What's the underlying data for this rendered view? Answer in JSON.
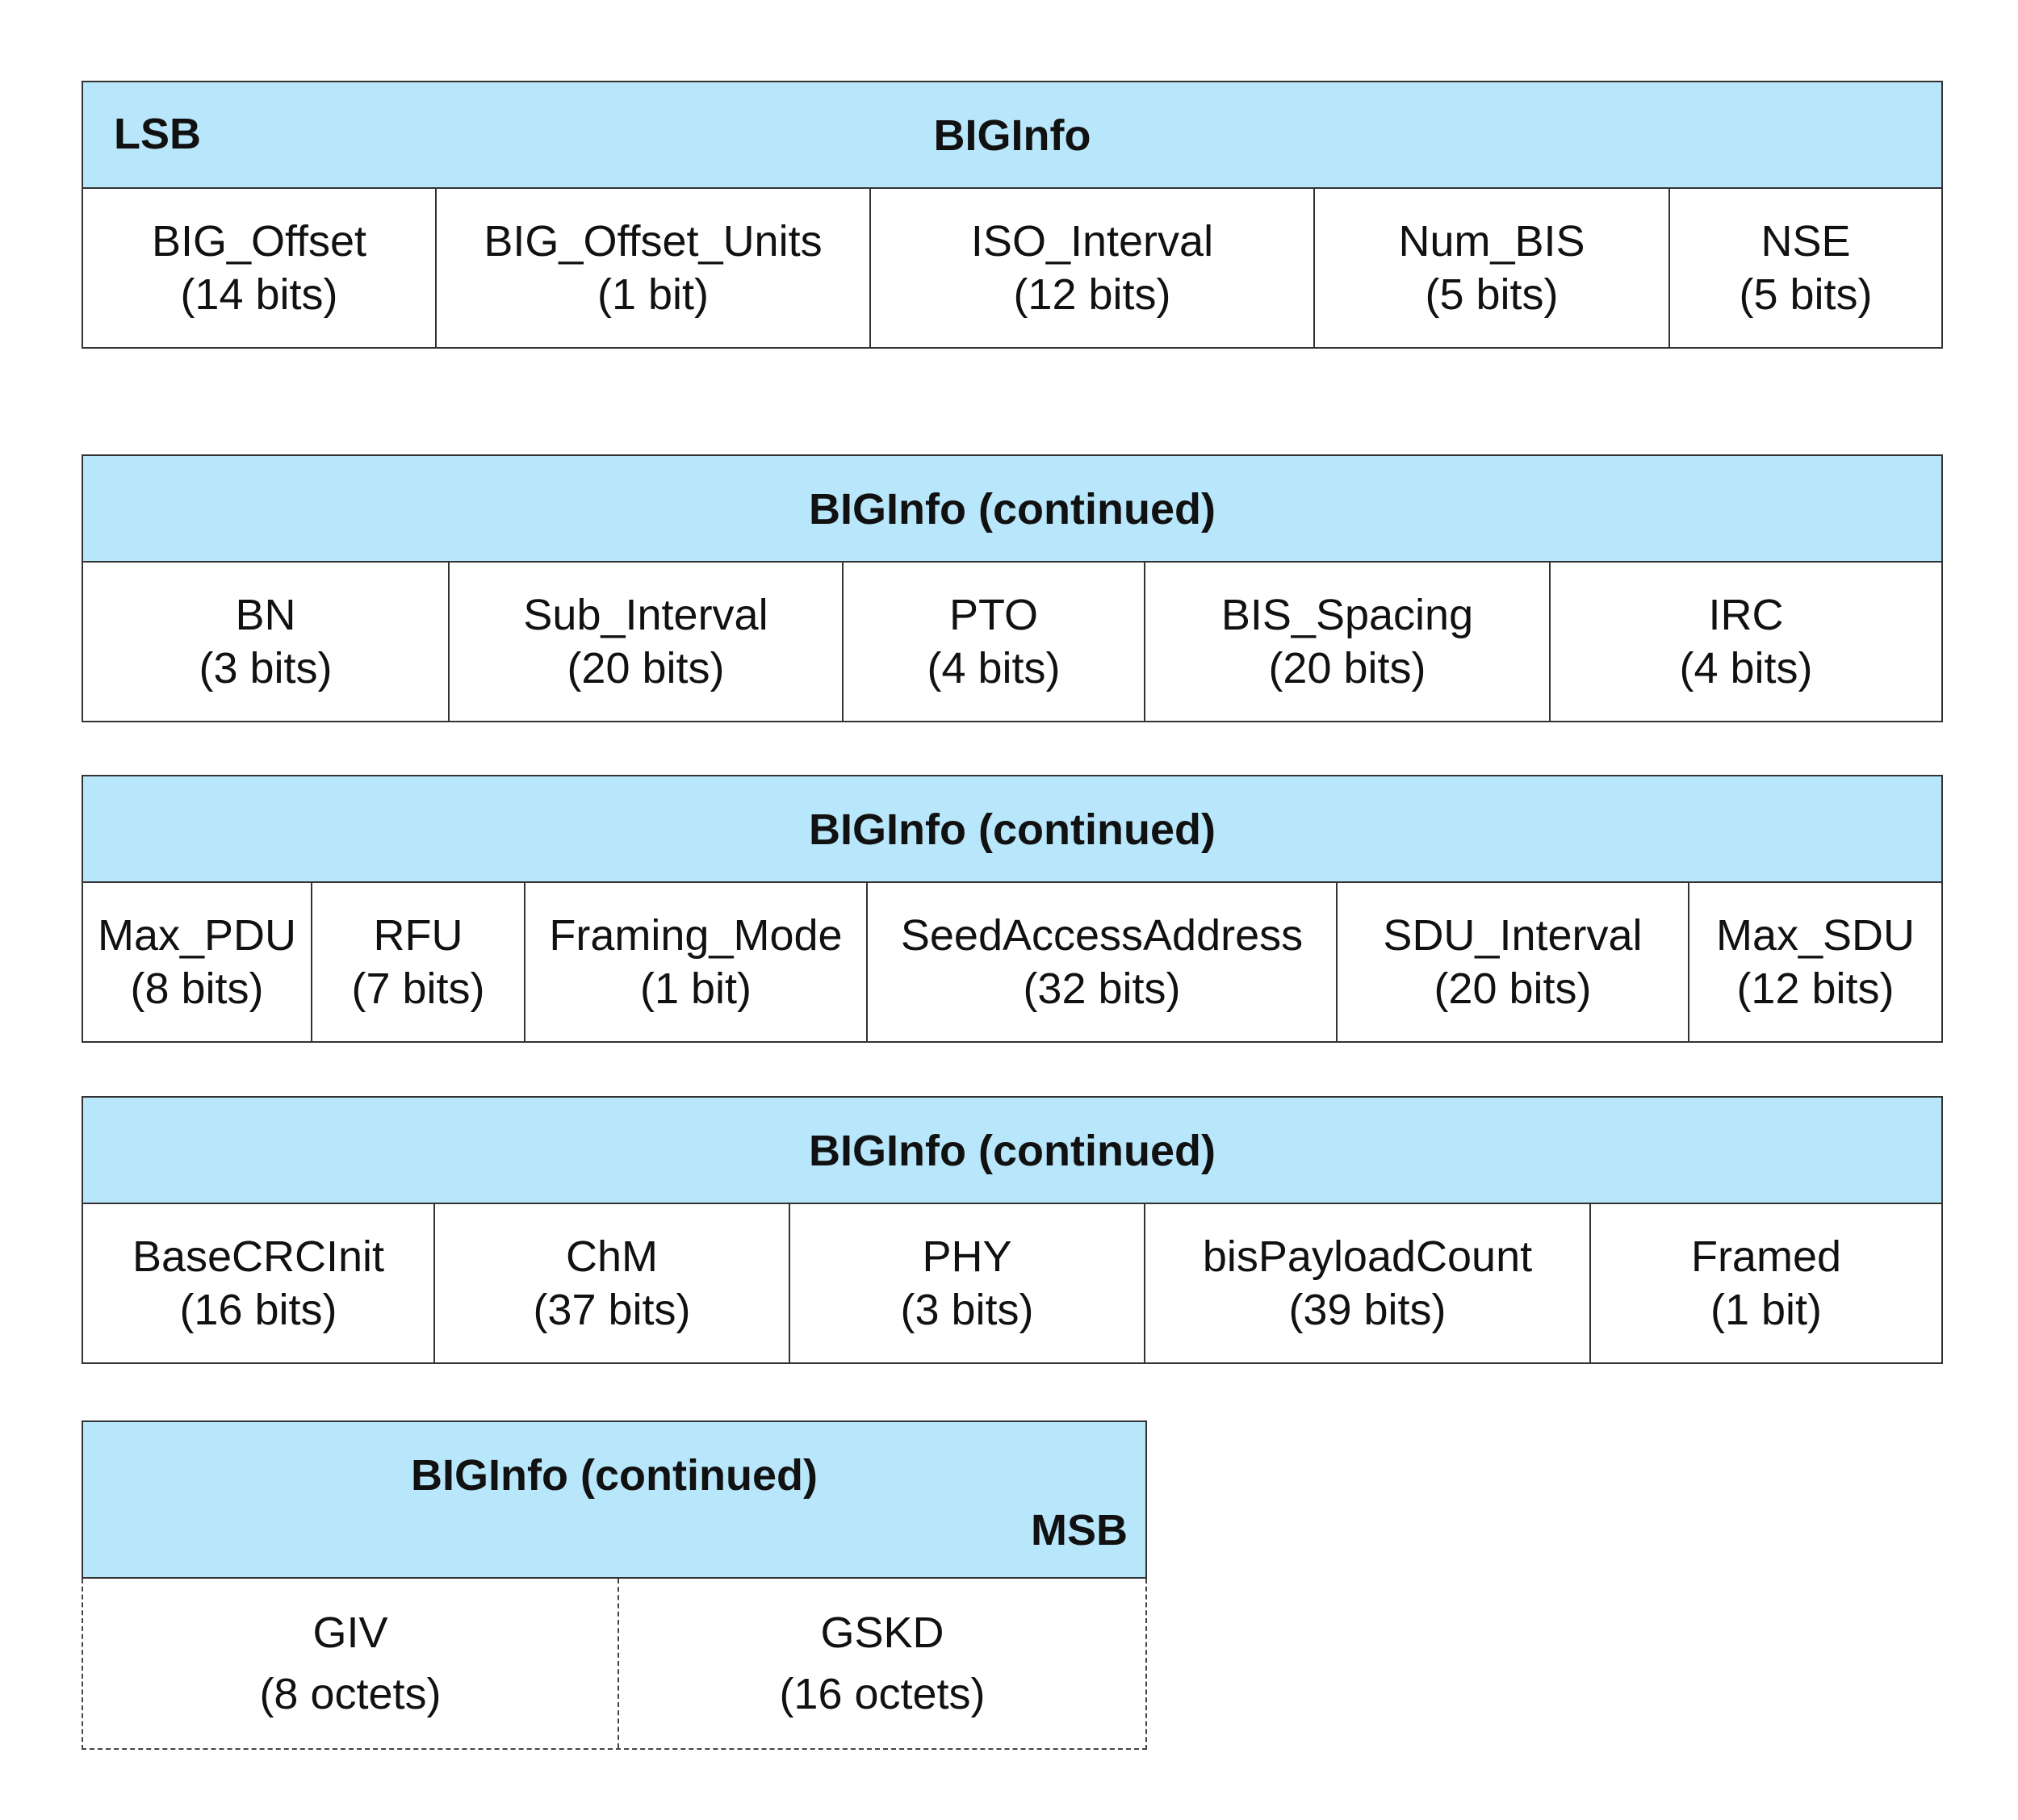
{
  "blocks": [
    {
      "title": "BIGInfo",
      "lsb": "LSB",
      "fields": [
        {
          "name": "BIG_Offset",
          "size": "(14 bits)"
        },
        {
          "name": "BIG_Offset_Units",
          "size": "(1 bit)"
        },
        {
          "name": "ISO_Interval",
          "size": "(12 bits)"
        },
        {
          "name": "Num_BIS",
          "size": "(5 bits)"
        },
        {
          "name": "NSE",
          "size": "(5 bits)"
        }
      ]
    },
    {
      "title": "BIGInfo (continued)",
      "fields": [
        {
          "name": "BN",
          "size": "(3 bits)"
        },
        {
          "name": "Sub_Interval",
          "size": "(20 bits)"
        },
        {
          "name": "PTO",
          "size": "(4 bits)"
        },
        {
          "name": "BIS_Spacing",
          "size": "(20 bits)"
        },
        {
          "name": "IRC",
          "size": "(4 bits)"
        }
      ]
    },
    {
      "title": "BIGInfo (continued)",
      "fields": [
        {
          "name": "Max_PDU",
          "size": "(8 bits)"
        },
        {
          "name": "RFU",
          "size": "(7 bits)"
        },
        {
          "name": "Framing_Mode",
          "size": "(1 bit)"
        },
        {
          "name": "SeedAccessAddress",
          "size": "(32 bits)"
        },
        {
          "name": "SDU_Interval",
          "size": "(20 bits)"
        },
        {
          "name": "Max_SDU",
          "size": "(12 bits)"
        }
      ]
    },
    {
      "title": "BIGInfo (continued)",
      "fields": [
        {
          "name": "BaseCRCInit",
          "size": "(16 bits)"
        },
        {
          "name": "ChM",
          "size": "(37 bits)"
        },
        {
          "name": "PHY",
          "size": "(3 bits)"
        },
        {
          "name": "bisPayloadCount",
          "size": "(39 bits)"
        },
        {
          "name": "Framed",
          "size": "(1 bit)"
        }
      ]
    },
    {
      "title": "BIGInfo (continued)",
      "msb": "MSB",
      "fields": [
        {
          "name": "GIV",
          "size": "(8 octets)"
        },
        {
          "name": "GSKD",
          "size": "(16 octets)"
        }
      ]
    }
  ],
  "colors": {
    "header_fill": "#b8e6fb",
    "border": "#333333"
  }
}
